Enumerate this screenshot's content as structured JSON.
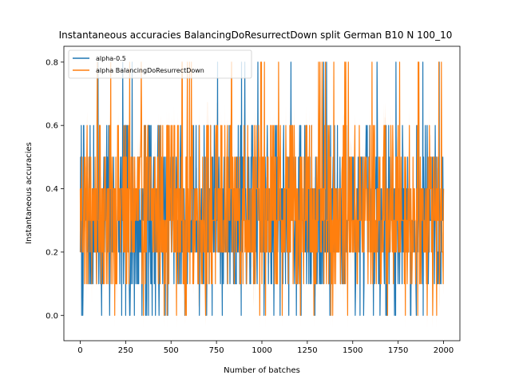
{
  "chart_data": {
    "type": "line",
    "title": "Instantaneous accuracies BalancingDoResurrectDown split German B10 N 100_10",
    "xlabel": "Number of batches",
    "ylabel": "Instantaneous accuracies",
    "xlim": [
      -90,
      2090
    ],
    "ylim": [
      -0.08,
      0.85
    ],
    "xticks": [
      0,
      250,
      500,
      750,
      1000,
      1250,
      1500,
      1750,
      2000
    ],
    "yticks": [
      0.0,
      0.2,
      0.4,
      0.6,
      0.8
    ],
    "xtick_labels": [
      "0",
      "250",
      "500",
      "750",
      "1000",
      "1250",
      "1500",
      "1750",
      "2000"
    ],
    "ytick_labels": [
      "0.0",
      "0.2",
      "0.4",
      "0.6",
      "0.8"
    ],
    "grid": false,
    "legend": "top-left",
    "x_range": [
      0,
      2000
    ],
    "series": [
      {
        "name": "alpha-0.5",
        "color": "#1f77b4",
        "levels": [
          0.0,
          0.1,
          0.2,
          0.3,
          0.4,
          0.5,
          0.6,
          0.8
        ],
        "approx_mean": 0.3
      },
      {
        "name": "alpha BalancingDoResurrectDown",
        "color": "#ff7f0e",
        "levels": [
          0.0,
          0.1,
          0.2,
          0.3,
          0.4,
          0.5,
          0.6,
          0.8
        ],
        "approx_mean": 0.33,
        "band_color": "#ff7f0e"
      }
    ]
  }
}
